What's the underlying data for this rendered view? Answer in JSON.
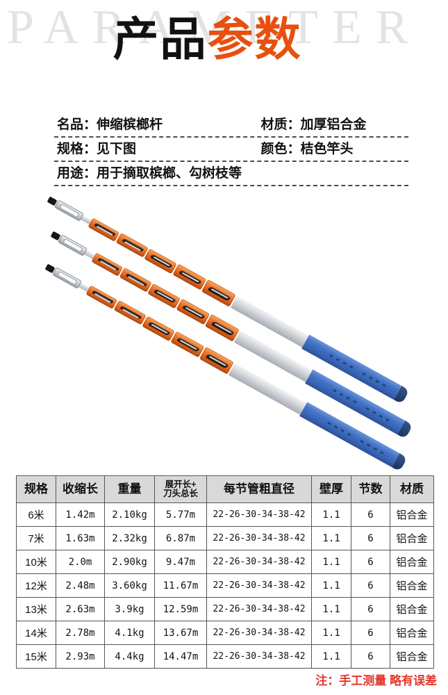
{
  "watermark": "PARAMETER",
  "title": {
    "prefix": "产品",
    "accent": "参数"
  },
  "accent_color": "#e8500f",
  "info_rows": [
    {
      "cells": [
        {
          "label": "名品：",
          "value": "伸缩槟榔杆"
        },
        {
          "label": "材质：",
          "value": "加厚铝合金"
        }
      ]
    },
    {
      "cells": [
        {
          "label": "规格：",
          "value": "见下图"
        },
        {
          "label": "颜色：",
          "value": "桔色竿头"
        }
      ]
    },
    {
      "cells": [
        {
          "label": "用途：",
          "value": "用于摘取槟榔、勾树枝等"
        }
      ]
    }
  ],
  "poles": {
    "count": 3,
    "colors": {
      "clamp_orange": "#ef7c30",
      "tube_silver": "#d4d7db",
      "grip_blue": "#4273c6",
      "tip_black": "#161616",
      "end_cap_navy": "#1b3560"
    }
  },
  "table": {
    "headers": [
      "规格",
      "收缩长",
      "重量",
      "展开长+\n刀头总长",
      "每节管粗直径",
      "壁厚",
      "节数",
      "材质"
    ],
    "rows": [
      [
        "6米",
        "1.42m",
        "2.10kg",
        "5.77m",
        "22-26-30-34-38-42",
        "1.1",
        "6",
        "铝合金"
      ],
      [
        "7米",
        "1.63m",
        "2.32kg",
        "6.87m",
        "22-26-30-34-38-42",
        "1.1",
        "6",
        "铝合金"
      ],
      [
        "10米",
        "2.0m",
        "2.90kg",
        "9.47m",
        "22-26-30-34-38-42",
        "1.1",
        "6",
        "铝合金"
      ],
      [
        "12米",
        "2.48m",
        "3.60kg",
        "11.67m",
        "22-26-30-34-38-42",
        "1.1",
        "6",
        "铝合金"
      ],
      [
        "13米",
        "2.63m",
        "3.9kg",
        "12.59m",
        "22-26-30-34-38-42",
        "1.1",
        "6",
        "铝合金"
      ],
      [
        "14米",
        "2.78m",
        "4.1kg",
        "13.67m",
        "22-26-30-34-38-42",
        "1.1",
        "6",
        "铝合金"
      ],
      [
        "15米",
        "2.93m",
        "4.4kg",
        "14.47m",
        "22-26-30-34-38-42",
        "1.1",
        "6",
        "铝合金"
      ]
    ]
  },
  "note": "注：手工测量 略有误差",
  "note_color": "#e2382c"
}
